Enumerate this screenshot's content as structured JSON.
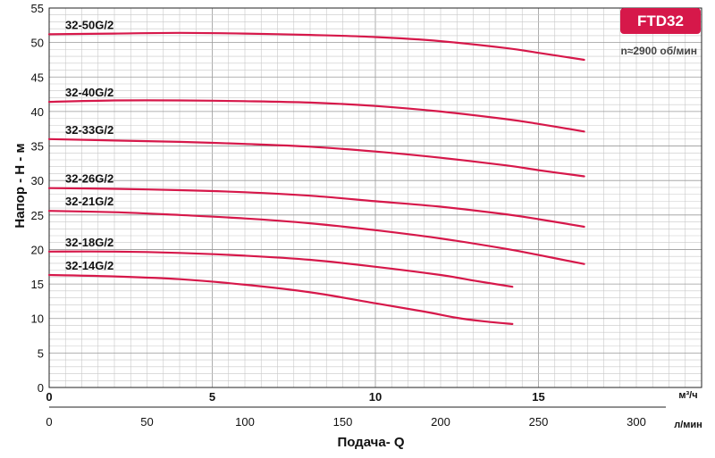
{
  "chart_data": {
    "type": "line",
    "title": "FTD32",
    "subtitle": "n≈2900 об/мин",
    "xlabel": "Подача- Q",
    "ylabel": "Напор - Н - м",
    "x_unit_primary": "м³/ч",
    "x_unit_secondary": "л/мин",
    "xlim": [
      0,
      20
    ],
    "ylim": [
      0,
      55
    ],
    "x_ticks_primary": [
      0,
      5,
      10,
      15
    ],
    "x_ticks_secondary": [
      0,
      50,
      100,
      150,
      200,
      250,
      300
    ],
    "y_ticks": [
      0,
      5,
      10,
      15,
      20,
      25,
      30,
      35,
      40,
      45,
      50,
      55
    ],
    "grid": true,
    "colors": {
      "curve": "#d6184a",
      "badge": "#d6184a",
      "grid": "#c8c8c8"
    },
    "series": [
      {
        "name": "32-50G/2",
        "x": [
          0,
          2,
          4,
          6,
          8,
          10,
          12,
          14,
          15,
          16.4
        ],
        "y": [
          51.2,
          51.3,
          51.4,
          51.3,
          51.1,
          50.8,
          50.2,
          49.2,
          48.5,
          47.5
        ]
      },
      {
        "name": "32-40G/2",
        "x": [
          0,
          2,
          4,
          6,
          8,
          10,
          12,
          14,
          15,
          16.4
        ],
        "y": [
          41.4,
          41.6,
          41.6,
          41.5,
          41.3,
          40.8,
          40.0,
          38.9,
          38.2,
          37.1
        ]
      },
      {
        "name": "32-33G/2",
        "x": [
          0,
          2,
          4,
          6,
          8,
          10,
          12,
          14,
          15,
          16.4
        ],
        "y": [
          36.0,
          35.8,
          35.6,
          35.3,
          34.9,
          34.2,
          33.3,
          32.2,
          31.5,
          30.6
        ]
      },
      {
        "name": "32-26G/2",
        "x": [
          0,
          2,
          4,
          6,
          8,
          10,
          12,
          14,
          15,
          16.4
        ],
        "y": [
          28.9,
          28.8,
          28.6,
          28.3,
          27.8,
          27.0,
          26.2,
          25.1,
          24.4,
          23.3
        ]
      },
      {
        "name": "32-21G/2",
        "x": [
          0,
          2,
          4,
          6,
          8,
          10,
          12,
          14,
          15,
          16.4
        ],
        "y": [
          25.6,
          25.4,
          25.0,
          24.5,
          23.8,
          22.8,
          21.6,
          20.1,
          19.2,
          17.9
        ]
      },
      {
        "name": "32-18G/2",
        "x": [
          0,
          2,
          4,
          6,
          8,
          10,
          12,
          13,
          14.2
        ],
        "y": [
          19.7,
          19.7,
          19.5,
          19.1,
          18.5,
          17.5,
          16.3,
          15.5,
          14.6
        ]
      },
      {
        "name": "32-14G/2",
        "x": [
          0,
          2,
          4,
          6,
          8,
          10,
          11.5,
          12.5,
          13.3,
          14.2
        ],
        "y": [
          16.3,
          16.1,
          15.7,
          14.9,
          13.8,
          12.2,
          11.0,
          10.1,
          9.6,
          9.2
        ]
      }
    ]
  }
}
